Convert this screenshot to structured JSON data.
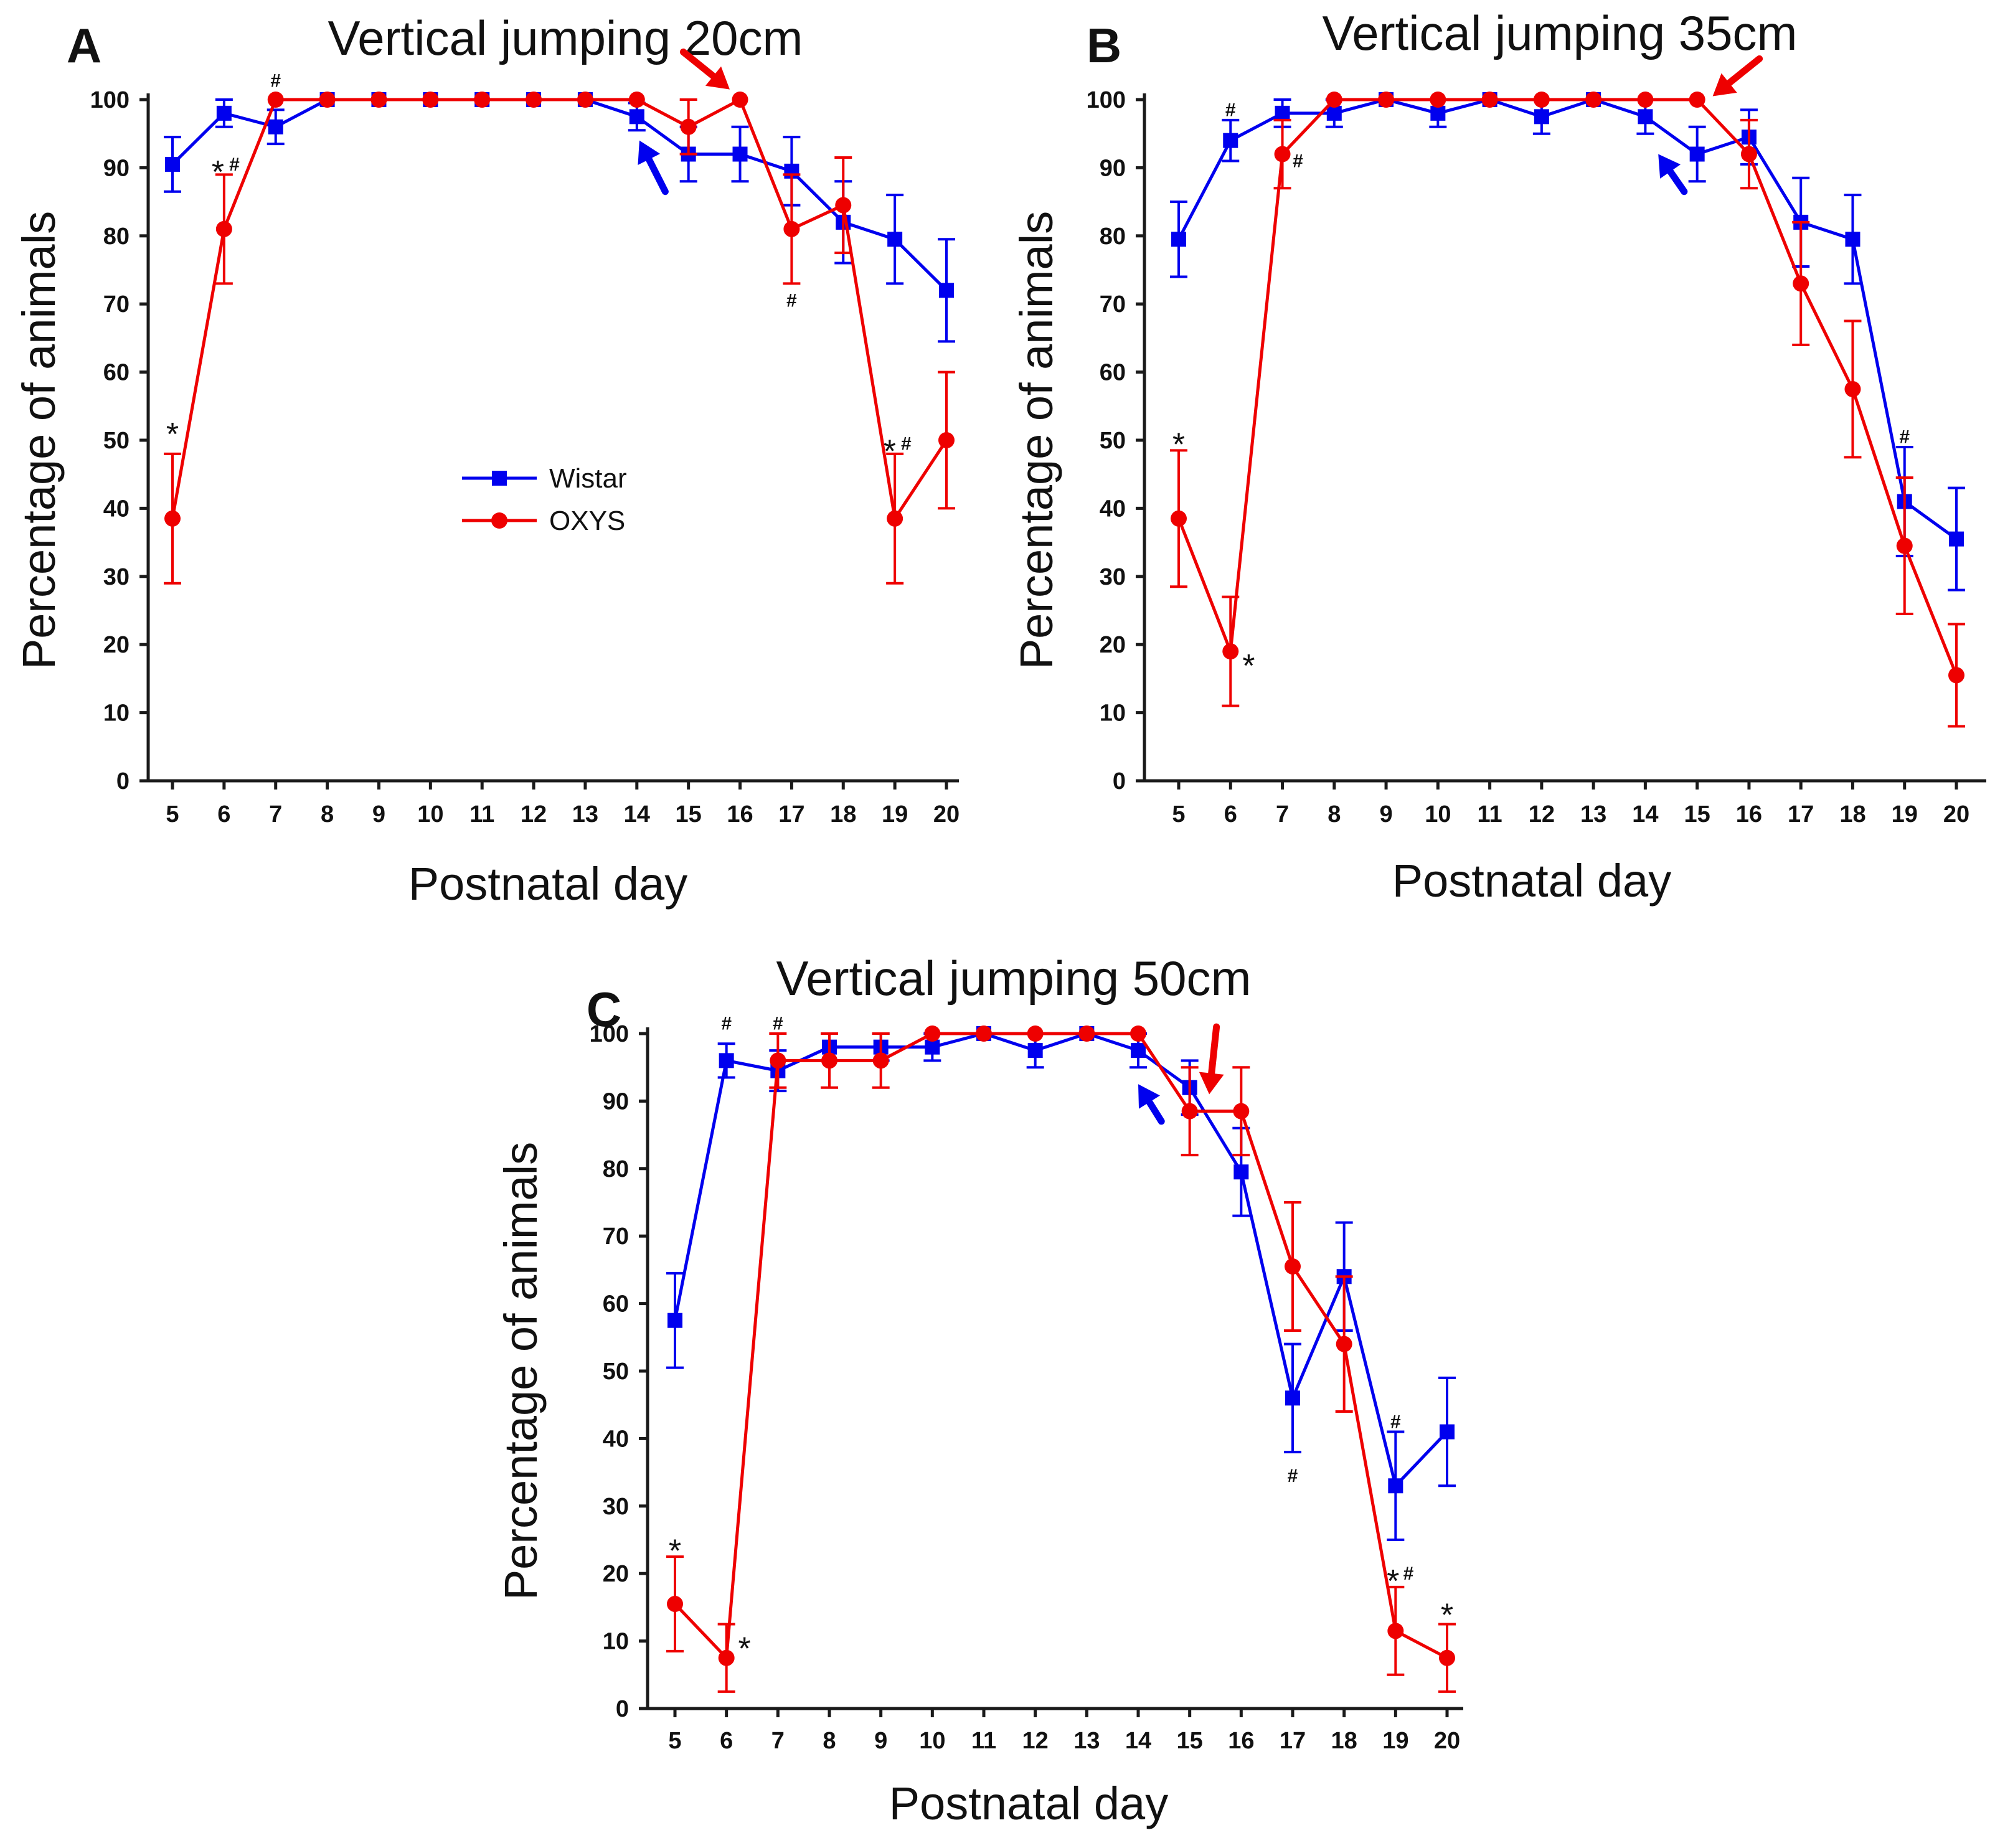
{
  "chart_data": [
    {
      "panel": "A",
      "type": "line",
      "title": "Vertical jumping 20cm",
      "xlabel": "Postnatal day",
      "ylabel": "Percentage of animals",
      "ylim": [
        0,
        100
      ],
      "yticks": [
        "0",
        "10",
        "20",
        "30",
        "40",
        "50",
        "60",
        "70",
        "80",
        "90",
        "100"
      ],
      "categories": [
        "5",
        "6",
        "7",
        "8",
        "9",
        "10",
        "11",
        "12",
        "13",
        "14",
        "15",
        "16",
        "17",
        "18",
        "19",
        "20"
      ],
      "legend": {
        "position": "center-left"
      },
      "series": [
        {
          "name": "Wistar",
          "color": "#0000ee",
          "marker": "square",
          "values": [
            90.5,
            98,
            96,
            100,
            100,
            100,
            100,
            100,
            100,
            97.5,
            92,
            92,
            89.5,
            82,
            79.5,
            72
          ],
          "errors": [
            4,
            2,
            2.5,
            0,
            0,
            0,
            0,
            0,
            0,
            2,
            4,
            4,
            5,
            6,
            6.5,
            7.5
          ]
        },
        {
          "name": "OXYS",
          "color": "#ee0000",
          "marker": "circle",
          "values": [
            38.5,
            81,
            100,
            100,
            100,
            100,
            100,
            100,
            100,
            100,
            96,
            100,
            81,
            84.5,
            38.5,
            50
          ],
          "errors": [
            9.5,
            8,
            0,
            0,
            0,
            0,
            0,
            0,
            0,
            0,
            4,
            0,
            8,
            7,
            9.5,
            10
          ]
        }
      ],
      "annotations": [
        {
          "text": "*",
          "x": "5",
          "y": 52,
          "size": "big"
        },
        {
          "text": "*",
          "x": "6",
          "y": 90.5,
          "size": "big",
          "dx": -0.12
        },
        {
          "text": "#",
          "x": "6",
          "y": 90.5,
          "size": "small",
          "dx": 0.2
        },
        {
          "text": "#",
          "x": "7",
          "y": 102.8,
          "size": "small"
        },
        {
          "text": "#",
          "x": "17",
          "y": 70.5,
          "size": "small"
        },
        {
          "text": "*",
          "x": "19",
          "y": 49.5,
          "size": "big",
          "dx": -0.1
        },
        {
          "text": "#",
          "x": "19",
          "y": 49.5,
          "size": "small",
          "dx": 0.22
        }
      ],
      "arrows": [
        {
          "color": "#ee0000",
          "from": [
            14.9,
            107
          ],
          "to": [
            15.8,
            101.5
          ]
        },
        {
          "color": "#0000ee",
          "from": [
            14.55,
            86.5
          ],
          "to": [
            14.05,
            94
          ]
        }
      ]
    },
    {
      "panel": "B",
      "type": "line",
      "title": "Vertical jumping 35cm",
      "xlabel": "Postnatal day",
      "ylabel": "Percentage of animals",
      "ylim": [
        0,
        100
      ],
      "yticks": [
        "0",
        "10",
        "20",
        "30",
        "40",
        "50",
        "60",
        "70",
        "80",
        "90",
        "100"
      ],
      "categories": [
        "5",
        "6",
        "7",
        "8",
        "9",
        "10",
        "11",
        "12",
        "13",
        "14",
        "15",
        "16",
        "17",
        "18",
        "19",
        "20"
      ],
      "series": [
        {
          "name": "Wistar",
          "color": "#0000ee",
          "marker": "square",
          "values": [
            79.5,
            94,
            98,
            98,
            100,
            98,
            100,
            97.5,
            100,
            97.5,
            92,
            94.5,
            82,
            79.5,
            41,
            35.5
          ],
          "errors": [
            5.5,
            3,
            2,
            2,
            0,
            2,
            0,
            2.5,
            0,
            2.5,
            4,
            4,
            6.5,
            6.5,
            8,
            7.5
          ]
        },
        {
          "name": "OXYS",
          "color": "#ee0000",
          "marker": "circle",
          "values": [
            38.5,
            19,
            92,
            100,
            100,
            100,
            100,
            100,
            100,
            100,
            100,
            92,
            73,
            57.5,
            34.5,
            15.5
          ],
          "errors": [
            10,
            8,
            5,
            0,
            0,
            0,
            0,
            0,
            0,
            0,
            0,
            5,
            9,
            10,
            10,
            7.5
          ]
        }
      ],
      "annotations": [
        {
          "text": "*",
          "x": "5",
          "y": 50.5,
          "size": "big"
        },
        {
          "text": "*",
          "x": "6",
          "y": 18,
          "size": "big",
          "dx": 0.35
        },
        {
          "text": "#",
          "x": "6",
          "y": 98.5,
          "size": "small"
        },
        {
          "text": "#",
          "x": "7",
          "y": 91,
          "size": "small",
          "dx": 0.3
        },
        {
          "text": "#",
          "x": "19",
          "y": 50.5,
          "size": "small"
        }
      ],
      "arrows": [
        {
          "color": "#ee0000",
          "from": [
            16.2,
            106
          ],
          "to": [
            15.3,
            100.5
          ]
        },
        {
          "color": "#0000ee",
          "from": [
            14.75,
            86.5
          ],
          "to": [
            14.25,
            92
          ]
        }
      ]
    },
    {
      "panel": "C",
      "type": "line",
      "title": "Vertical jumping 50cm",
      "xlabel": "Postnatal day",
      "ylabel": "Percentage of animals",
      "ylim": [
        0,
        100
      ],
      "yticks": [
        "0",
        "10",
        "20",
        "30",
        "40",
        "50",
        "60",
        "70",
        "80",
        "90",
        "100"
      ],
      "categories": [
        "5",
        "6",
        "7",
        "8",
        "9",
        "10",
        "11",
        "12",
        "13",
        "14",
        "15",
        "16",
        "17",
        "18",
        "19",
        "20"
      ],
      "series": [
        {
          "name": "Wistar",
          "color": "#0000ee",
          "marker": "square",
          "values": [
            57.5,
            96,
            94.5,
            98,
            98,
            98,
            100,
            97.5,
            100,
            97.5,
            92,
            79.5,
            46,
            64,
            33,
            41
          ],
          "errors": [
            7,
            2.5,
            3,
            2,
            2,
            2,
            0,
            2.5,
            0,
            2.5,
            4,
            6.5,
            8,
            8,
            8,
            8
          ]
        },
        {
          "name": "OXYS",
          "color": "#ee0000",
          "marker": "circle",
          "values": [
            15.5,
            7.5,
            96,
            96,
            96,
            100,
            100,
            100,
            100,
            100,
            88.5,
            88.5,
            65.5,
            54,
            11.5,
            7.5
          ],
          "errors": [
            7,
            5,
            4,
            4,
            4,
            0,
            0,
            0,
            0,
            0,
            6.5,
            6.5,
            9.5,
            10,
            6.5,
            5
          ]
        }
      ],
      "annotations": [
        {
          "text": "*",
          "x": "5",
          "y": 24.5,
          "size": "big"
        },
        {
          "text": "*",
          "x": "6",
          "y": 10,
          "size": "big",
          "dx": 0.35
        },
        {
          "text": "#",
          "x": "6",
          "y": 101.5,
          "size": "small"
        },
        {
          "text": "#",
          "x": "7",
          "y": 101.5,
          "size": "small"
        },
        {
          "text": "#",
          "x": "17",
          "y": 34.5,
          "size": "small"
        },
        {
          "text": "#",
          "x": "19",
          "y": 42.5,
          "size": "small"
        },
        {
          "text": "*",
          "x": "19",
          "y": 20,
          "size": "big",
          "dx": -0.05
        },
        {
          "text": "#",
          "x": "19",
          "y": 20,
          "size": "small",
          "dx": 0.25
        },
        {
          "text": "*",
          "x": "20",
          "y": 15,
          "size": "big"
        }
      ],
      "arrows": [
        {
          "color": "#ee0000",
          "from": [
            15.52,
            101
          ],
          "to": [
            15.38,
            91
          ]
        },
        {
          "color": "#0000ee",
          "from": [
            14.45,
            87
          ],
          "to": [
            14.0,
            92.5
          ]
        }
      ]
    }
  ]
}
